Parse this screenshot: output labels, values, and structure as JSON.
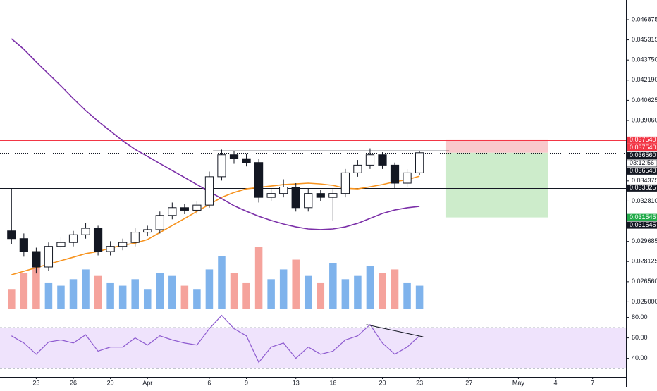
{
  "chart_data": [
    {
      "type": "candlestick",
      "x": [
        21,
        22,
        23,
        24,
        25,
        26,
        27,
        28,
        29,
        30,
        31,
        32,
        33,
        34,
        35,
        36,
        37,
        38,
        39,
        40,
        41,
        42,
        43,
        44,
        45,
        46,
        47,
        48,
        49,
        50,
        51,
        52,
        53,
        54
      ],
      "open": [
        0.0305,
        0.0299,
        0.0289,
        0.0277,
        0.0293,
        0.0296,
        0.0302,
        0.0307,
        0.0289,
        0.0293,
        0.0296,
        0.0304,
        0.0306,
        0.0317,
        0.0323,
        0.0321,
        0.0325,
        0.0347,
        0.0364,
        0.0361,
        0.0358,
        0.0331,
        0.0334,
        0.0339,
        0.0323,
        0.0334,
        0.0331,
        0.0334,
        0.035,
        0.0356,
        0.0364,
        0.0356,
        0.0342,
        0.035
      ],
      "high": [
        0.0338,
        0.0303,
        0.0292,
        0.0296,
        0.03,
        0.0305,
        0.0311,
        0.0309,
        0.0297,
        0.0299,
        0.0307,
        0.0309,
        0.032,
        0.0327,
        0.0326,
        0.0328,
        0.0351,
        0.0368,
        0.0367,
        0.0365,
        0.0361,
        0.0338,
        0.0345,
        0.0342,
        0.0338,
        0.0337,
        0.0338,
        0.0353,
        0.036,
        0.0369,
        0.0366,
        0.0358,
        0.0353,
        0.0367
      ],
      "low": [
        0.0295,
        0.0285,
        0.0272,
        0.0274,
        0.029,
        0.0293,
        0.0299,
        0.0286,
        0.0286,
        0.029,
        0.0293,
        0.0301,
        0.0303,
        0.0314,
        0.0318,
        0.0318,
        0.0323,
        0.0344,
        0.0357,
        0.0355,
        0.0327,
        0.0328,
        0.0331,
        0.032,
        0.032,
        0.0328,
        0.0313,
        0.0331,
        0.0347,
        0.0353,
        0.0353,
        0.0338,
        0.0339,
        0.0348
      ],
      "close": [
        0.0299,
        0.0289,
        0.0277,
        0.0293,
        0.0296,
        0.0302,
        0.0307,
        0.0289,
        0.0293,
        0.0296,
        0.0304,
        0.0306,
        0.0317,
        0.0323,
        0.0321,
        0.0325,
        0.0347,
        0.0364,
        0.0361,
        0.0358,
        0.0331,
        0.0334,
        0.0339,
        0.0323,
        0.0334,
        0.0331,
        0.0334,
        0.035,
        0.0356,
        0.0364,
        0.0356,
        0.0342,
        0.035,
        0.03656
      ],
      "volume": [
        30,
        55,
        70,
        40,
        35,
        45,
        60,
        50,
        40,
        35,
        45,
        30,
        55,
        50,
        35,
        30,
        60,
        80,
        55,
        40,
        95,
        45,
        60,
        75,
        50,
        40,
        70,
        45,
        50,
        65,
        55,
        60,
        40,
        35
      ],
      "up_color": "#ffffff",
      "down_color": "#131722",
      "volume_up_color": "#7fb3ec",
      "volume_down_color": "#f5a39c",
      "overlays": [
        {
          "color": "#f7931e",
          "values": [
            0.0271,
            0.02737,
            0.02765,
            0.02792,
            0.02819,
            0.02846,
            0.02874,
            0.0289,
            0.02917,
            0.02939,
            0.02955,
            0.02983,
            0.03037,
            0.03092,
            0.03146,
            0.03201,
            0.03255,
            0.0331,
            0.03348,
            0.03376,
            0.03387,
            0.03398,
            0.03409,
            0.03414,
            0.0342,
            0.03414,
            0.03403,
            0.03381,
            0.03376,
            0.03392,
            0.03409,
            0.03431,
            0.03447,
            0.03474
          ]
        },
        {
          "color": "#7b2fa8",
          "values": [
            0.0454,
            0.04458,
            0.0436,
            0.04267,
            0.04174,
            0.04076,
            0.03983,
            0.03901,
            0.03824,
            0.03748,
            0.03682,
            0.03628,
            0.03573,
            0.03518,
            0.03464,
            0.03409,
            0.03355,
            0.033,
            0.03245,
            0.03202,
            0.03163,
            0.03131,
            0.03103,
            0.03081,
            0.03065,
            0.0306,
            0.03065,
            0.03081,
            0.03109,
            0.03147,
            0.03185,
            0.03212,
            0.03229,
            0.0324
          ]
        }
      ],
      "levels": [
        {
          "value": 0.03754,
          "color": "#f23645",
          "dash": false
        },
        {
          "value": 0.03656,
          "color": "#131722",
          "dash": true
        },
        {
          "value": 0.033825,
          "color": "#131722",
          "dash": false
        },
        {
          "value": 0.031545,
          "color": "#131722",
          "dash": false
        }
      ],
      "trendlines": [
        {
          "x": [
            37.3,
            56.4
          ],
          "values": [
            0.0367,
            0.0367
          ],
          "color": "#131722"
        }
      ],
      "position": {
        "start": 56.1,
        "end": 64.4,
        "entry": 0.03656,
        "stop": 0.03754,
        "target": 0.031545,
        "loss_color": "#f9c9cc",
        "profit_color": "#cdeccb"
      },
      "tags": [
        {
          "value": 0.03754,
          "label": "0.037540",
          "color": "#f23645"
        },
        {
          "value": 0.03754,
          "label": "0.037540",
          "color": "#f23645"
        },
        {
          "value": 0.03656,
          "label": "0.036560",
          "color": "#131722",
          "countdown": "03:12:56"
        },
        {
          "value": 0.03654,
          "label": "0.036540",
          "color": "#131722"
        },
        {
          "value": 0.033825,
          "label": "0.033825",
          "color": "#131722"
        },
        {
          "value": 0.031545,
          "label": "0.031545",
          "color": "#22ab4a"
        },
        {
          "value": 0.031545,
          "label": "0.031545",
          "color": "#131722"
        }
      ],
      "xlim": [
        20.07,
        70.7
      ],
      "xticks": [
        23,
        26,
        29,
        {
          "value": 32,
          "label": "Apr"
        },
        {
          "value": 37,
          "label": "6"
        },
        {
          "value": 40,
          "label": "9"
        },
        {
          "value": 44,
          "label": "13"
        },
        {
          "value": 47,
          "label": "16"
        },
        {
          "value": 51,
          "label": "20"
        },
        {
          "value": 54,
          "label": "23"
        },
        {
          "value": 58,
          "label": "27"
        },
        {
          "value": 62,
          "label": "May"
        },
        {
          "value": 65,
          "label": "4"
        },
        {
          "value": 68,
          "label": "7"
        }
      ],
      "ylim": [
        0.024476,
        0.048405
      ],
      "yticks": [
        0.046875,
        0.045315,
        {
          "value": 0.04375,
          "label": "0.043750"
        },
        {
          "value": 0.04219,
          "label": "0.042190"
        },
        0.040625,
        {
          "value": 0.03906,
          "label": "0.039060"
        },
        0.034375,
        {
          "value": 0.03281,
          "label": "0.032810"
        },
        0.029685,
        0.028125,
        {
          "value": 0.02656,
          "label": "0.026560"
        },
        {
          "value": 0.025,
          "label": "0.025000"
        }
      ]
    },
    {
      "type": "line",
      "x": [
        21,
        22,
        23,
        24,
        25,
        26,
        27,
        28,
        29,
        30,
        31,
        32,
        33,
        34,
        35,
        36,
        37,
        38,
        39,
        40,
        41,
        42,
        43,
        44,
        45,
        46,
        47,
        48,
        49,
        50,
        51,
        52,
        53,
        54
      ],
      "values": [
        62,
        55,
        44,
        56,
        58,
        55,
        63,
        47,
        51,
        51,
        60,
        53,
        62,
        58,
        55,
        53,
        69,
        82,
        69,
        62,
        36,
        51,
        55,
        40,
        51,
        44,
        47,
        58,
        62,
        73,
        55,
        44,
        51,
        62
      ],
      "color": "#8e5bd0",
      "band": [
        30,
        70
      ],
      "band_color": "#efe3fc",
      "trendlines": [
        {
          "x": [
            49.7,
            54.3
          ],
          "values": [
            73,
            61
          ],
          "color": "#131722"
        }
      ],
      "ylim": [
        21.8,
        87.3
      ],
      "yticks": [
        {
          "value": 80,
          "label": "80.00"
        },
        {
          "value": 60,
          "label": "60.00"
        },
        {
          "value": 40,
          "label": "40.00"
        }
      ]
    }
  ]
}
